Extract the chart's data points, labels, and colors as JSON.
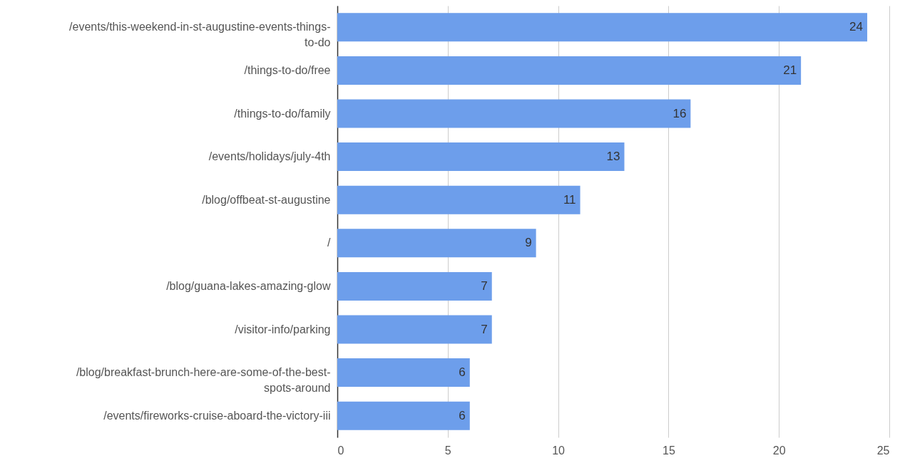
{
  "chart_data": {
    "type": "bar",
    "orientation": "horizontal",
    "categories": [
      "/events/this-weekend-in-st-augustine-events-things-to-do",
      "/things-to-do/free",
      "/things-to-do/family",
      "/events/holidays/july-4th",
      "/blog/offbeat-st-augustine",
      "/",
      "/blog/guana-lakes-amazing-glow",
      "/visitor-info/parking",
      "/blog/breakfast-brunch-here-are-some-of-the-best-spots-around",
      "/events/fireworks-cruise-aboard-the-victory-iii"
    ],
    "values": [
      24,
      21,
      16,
      13,
      11,
      9,
      7,
      7,
      6,
      6
    ],
    "color": "#6d9eeb",
    "xlim": [
      0,
      25
    ],
    "xticks": [
      0,
      5,
      10,
      15,
      20,
      25
    ],
    "grid": "x",
    "data_labels": true
  }
}
